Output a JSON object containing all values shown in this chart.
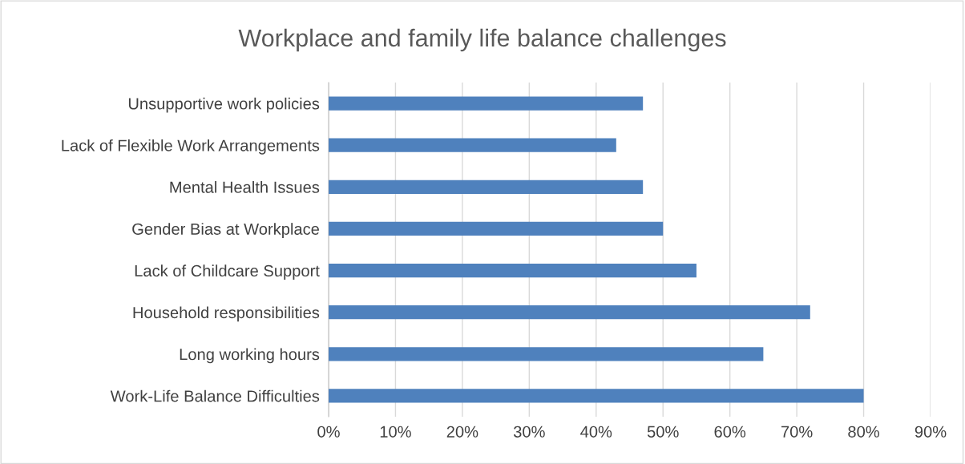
{
  "chart_data": {
    "type": "bar",
    "orientation": "horizontal",
    "title": "Workplace and family life balance challenges",
    "categories": [
      "Unsupportive work policies",
      "Lack of Flexible Work Arrangements",
      "Mental Health Issues",
      "Gender Bias at Workplace",
      "Lack of Childcare Support",
      "Household responsibilities",
      "Long working hours",
      "Work-Life Balance Difficulties"
    ],
    "values": [
      47,
      43,
      47,
      50,
      55,
      72,
      65,
      80
    ],
    "color": "#4f81bd",
    "xlim": [
      0,
      90
    ],
    "xticks": [
      {
        "value": 0,
        "label": "0%"
      },
      {
        "value": 10,
        "label": "10%"
      },
      {
        "value": 20,
        "label": "20%"
      },
      {
        "value": 30,
        "label": "30%"
      },
      {
        "value": 40,
        "label": "40%"
      },
      {
        "value": 50,
        "label": "50%"
      },
      {
        "value": 60,
        "label": "60%"
      },
      {
        "value": 70,
        "label": "70%"
      },
      {
        "value": 80,
        "label": "80%"
      },
      {
        "value": 90,
        "label": "90%"
      }
    ],
    "grid": "x",
    "legend": false
  }
}
